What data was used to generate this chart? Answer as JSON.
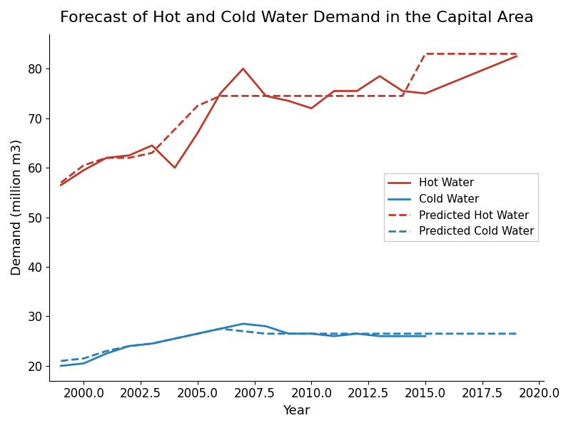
{
  "title": "Forecast of Hot and Cold Water Demand in the Capital Area",
  "xlabel": "Year",
  "ylabel": "Demand (million m3)",
  "background_color": "#ffffff",
  "hot_water_years": [
    1999,
    2000,
    2001,
    2002,
    2003,
    2004,
    2005,
    2006,
    2007,
    2008,
    2009,
    2010,
    2011,
    2012,
    2013,
    2014,
    2015,
    2019
  ],
  "hot_water_values": [
    56.5,
    59.5,
    62.0,
    62.5,
    64.5,
    60.0,
    67.0,
    75.0,
    80.0,
    74.5,
    73.5,
    72.0,
    75.5,
    75.5,
    78.5,
    75.5,
    75.0,
    82.5
  ],
  "cold_water_years": [
    1999,
    2000,
    2001,
    2002,
    2003,
    2004,
    2005,
    2006,
    2007,
    2008,
    2009,
    2010,
    2011,
    2012,
    2013,
    2014,
    2015
  ],
  "cold_water_values": [
    20.0,
    20.5,
    22.5,
    24.0,
    24.5,
    25.5,
    26.5,
    27.5,
    28.5,
    28.0,
    26.5,
    26.5,
    26.0,
    26.5,
    26.0,
    26.0,
    26.0
  ],
  "pred_hot_years": [
    1999,
    2000,
    2001,
    2002,
    2003,
    2005,
    2006,
    2007,
    2008,
    2009,
    2010,
    2011,
    2012,
    2013,
    2014,
    2015,
    2016,
    2017,
    2018,
    2019
  ],
  "pred_hot_values": [
    57.0,
    60.5,
    62.0,
    62.0,
    63.0,
    72.5,
    74.5,
    74.5,
    74.5,
    74.5,
    74.5,
    74.5,
    74.5,
    74.5,
    74.5,
    83.0,
    83.0,
    83.0,
    83.0,
    83.0
  ],
  "pred_cold_years": [
    1999,
    2000,
    2001,
    2002,
    2003,
    2004,
    2005,
    2006,
    2007,
    2008,
    2009,
    2010,
    2011,
    2012,
    2013,
    2014,
    2015,
    2016,
    2017,
    2018,
    2019
  ],
  "pred_cold_values": [
    21.0,
    21.5,
    23.0,
    24.0,
    24.5,
    25.5,
    26.5,
    27.5,
    27.0,
    26.5,
    26.5,
    26.5,
    26.5,
    26.5,
    26.5,
    26.5,
    26.5,
    26.5,
    26.5,
    26.5,
    26.5
  ],
  "hot_color": "#c0392b",
  "cold_color": "#2980b9",
  "legend_loc": "center right",
  "ylim": [
    17,
    87
  ],
  "xlim": [
    1998.5,
    2020.2
  ],
  "title_fontsize": 16,
  "axis_fontsize": 13,
  "tick_fontsize": 12,
  "legend_fontsize": 11,
  "figsize": [
    8.0,
    6.0
  ],
  "dpi": 100
}
